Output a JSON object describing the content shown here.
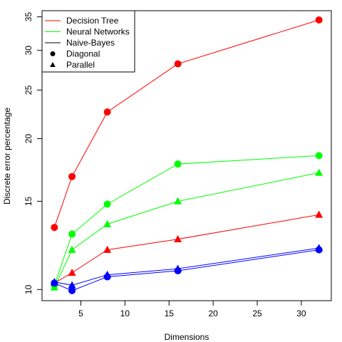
{
  "chart_data": {
    "type": "line",
    "xlabel": "Dimensions",
    "ylabel": "Discrete error percentage",
    "x": [
      2,
      4,
      8,
      16,
      32
    ],
    "xlim": [
      0.6,
      33.4
    ],
    "ylim": [
      9.5,
      36
    ],
    "y_scale": "log",
    "xticks": [
      5,
      10,
      15,
      20,
      25,
      30
    ],
    "yticks": [
      10,
      15,
      20,
      25,
      30,
      35
    ],
    "grid": false,
    "legend_position": "top-left",
    "legend": [
      {
        "label": "Decision Tree",
        "kind": "line",
        "color": "#ff0000"
      },
      {
        "label": "Neural Networks",
        "kind": "line",
        "color": "#00ff00"
      },
      {
        "label": "Naive-Bayes",
        "kind": "line",
        "color": "#000000"
      },
      {
        "label": "Diagonal",
        "kind": "marker",
        "marker": "circle",
        "color": "#000000"
      },
      {
        "label": "Parallel",
        "kind": "marker",
        "marker": "triangle",
        "color": "#000000"
      }
    ],
    "series": [
      {
        "name": "Decision Tree",
        "variant": "Diagonal",
        "color": "#ff0000",
        "marker": "circle",
        "values": [
          13.3,
          16.8,
          22.6,
          28.2,
          34.5
        ]
      },
      {
        "name": "Decision Tree",
        "variant": "Parallel",
        "color": "#ff0000",
        "marker": "triangle",
        "values": [
          10.3,
          10.8,
          12.0,
          12.6,
          14.1
        ]
      },
      {
        "name": "Neural Networks",
        "variant": "Diagonal",
        "color": "#00ff00",
        "marker": "circle",
        "values": [
          10.2,
          12.9,
          14.8,
          17.8,
          18.5
        ]
      },
      {
        "name": "Neural Networks",
        "variant": "Parallel",
        "color": "#00ff00",
        "marker": "triangle",
        "values": [
          10.1,
          12.0,
          13.5,
          15.0,
          17.1
        ]
      },
      {
        "name": "Naive-Bayes",
        "variant": "Diagonal",
        "color": "#0000ff",
        "marker": "circle",
        "values": [
          10.3,
          9.95,
          10.6,
          10.9,
          12.0
        ]
      },
      {
        "name": "Naive-Bayes",
        "variant": "Parallel",
        "color": "#0000ff",
        "marker": "triangle",
        "values": [
          10.35,
          10.2,
          10.7,
          11.0,
          12.1
        ]
      }
    ]
  }
}
